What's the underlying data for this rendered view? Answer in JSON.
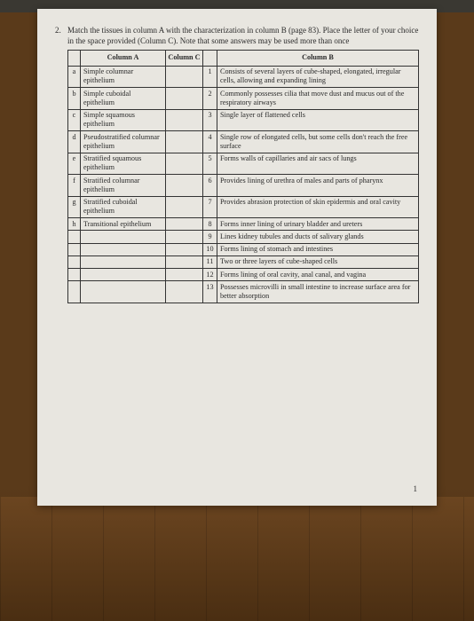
{
  "question": {
    "number": "2.",
    "text": "Match the tissues in column A with the characterization in column B (page 83). Place the letter of your choice in the space provided (Column C). Note that some answers may be used more than once"
  },
  "headers": {
    "colA": "Column A",
    "colC": "Column C",
    "colB": "Column B"
  },
  "rowsA": [
    {
      "letter": "a",
      "tissue": "Simple columnar epithelium"
    },
    {
      "letter": "b",
      "tissue": "Simple cuboidal epithelium"
    },
    {
      "letter": "c",
      "tissue": "Simple squamous epithelium"
    },
    {
      "letter": "d",
      "tissue": "Pseudostratified columnar epithelium"
    },
    {
      "letter": "e",
      "tissue": "Stratified squamous epithelium"
    },
    {
      "letter": "f",
      "tissue": "Stratified columnar epithelium"
    },
    {
      "letter": "g",
      "tissue": "Stratified cuboidal epithelium"
    },
    {
      "letter": "h",
      "tissue": "Transitional epithelium"
    }
  ],
  "rowsB": [
    {
      "num": "1",
      "desc": "Consists of several layers of cube-shaped, elongated, irregular cells, allowing and expanding lining"
    },
    {
      "num": "2",
      "desc": "Commonly possesses cilia that move dust and mucus out of the respiratory airways"
    },
    {
      "num": "3",
      "desc": "Single layer of flattened cells"
    },
    {
      "num": "4",
      "desc": "Single row of elongated cells, but some cells don't reach the free surface"
    },
    {
      "num": "5",
      "desc": "Forms walls of capillaries and air sacs of lungs"
    },
    {
      "num": "6",
      "desc": "Provides lining of urethra of males and parts of pharynx"
    },
    {
      "num": "7",
      "desc": "Provides abrasion protection of skin epidermis and oral cavity"
    },
    {
      "num": "8",
      "desc": "Forms inner lining of urinary bladder and ureters"
    },
    {
      "num": "9",
      "desc": "Lines kidney tubules and ducts of salivary glands"
    },
    {
      "num": "10",
      "desc": "Forms lining of stomach and intestines"
    },
    {
      "num": "11",
      "desc": "Two or three layers of cube-shaped cells"
    },
    {
      "num": "12",
      "desc": "Forms lining of oral cavity, anal canal, and vagina"
    },
    {
      "num": "13",
      "desc": "Possesses microvilli in small intestine to increase surface area for better absorption"
    }
  ],
  "pageNumber": "1"
}
